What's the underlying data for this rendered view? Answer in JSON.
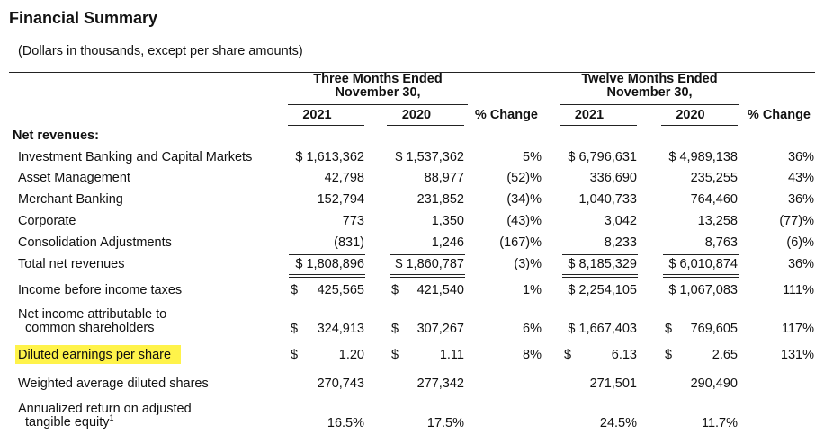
{
  "title": "Financial Summary",
  "subtitle": "(Dollars in thousands, except per share amounts)",
  "column_groups": [
    [
      "Three Months Ended",
      "November 30,"
    ],
    [
      "Twelve Months Ended",
      "November 30,"
    ]
  ],
  "columns": [
    "2021",
    "2020",
    "% Change",
    "2021",
    "2020",
    "% Change"
  ],
  "section": "Net revenues:",
  "rows": [
    {
      "label": [
        "Investment Banking and Capital Markets"
      ],
      "cells": [
        "$ 1,613,362",
        "$ 1,537,362",
        "5%",
        "$ 6,796,631",
        "$ 4,989,138",
        "36%"
      ]
    },
    {
      "label": [
        "Asset Management"
      ],
      "cells": [
        "42,798",
        "88,977",
        "(52)%",
        "336,690",
        "235,255",
        "43%"
      ]
    },
    {
      "label": [
        "Merchant Banking"
      ],
      "cells": [
        "152,794",
        "231,852",
        "(34)%",
        "1,040,733",
        "764,460",
        "36%"
      ]
    },
    {
      "label": [
        "Corporate"
      ],
      "cells": [
        "773",
        "1,350",
        "(43)%",
        "3,042",
        "13,258",
        "(77)%"
      ]
    },
    {
      "label": [
        "Consolidation Adjustments"
      ],
      "cells": [
        "(831)",
        "1,246",
        "(167)%",
        "8,233",
        "8,763",
        "(6)%"
      ]
    },
    {
      "label": [
        "Total net revenues"
      ],
      "cells": [
        "$ 1,808,896",
        "$ 1,860,787",
        "(3)%",
        "$ 8,185,329",
        "$ 6,010,874",
        "36%"
      ]
    },
    {
      "label": [
        "Income before income taxes"
      ],
      "cells": [
        [
          "$",
          "425,565"
        ],
        [
          "$",
          "421,540"
        ],
        "1%",
        "$ 2,254,105",
        "$ 1,067,083",
        "111%"
      ]
    },
    {
      "label": [
        "Net income attributable to",
        "common shareholders"
      ],
      "cells": [
        [
          "$",
          "324,913"
        ],
        [
          "$",
          "307,267"
        ],
        "6%",
        "$ 1,667,403",
        [
          "$",
          "769,605"
        ],
        "117%"
      ]
    },
    {
      "label": [
        "Diluted earnings per share"
      ],
      "highlight": true,
      "cells": [
        [
          "$",
          "1.20"
        ],
        [
          "$",
          "1.11"
        ],
        "8%",
        [
          "$",
          "6.13"
        ],
        [
          "$",
          "2.65"
        ],
        "131%"
      ]
    },
    {
      "label": [
        "Weighted average diluted shares"
      ],
      "cells": [
        "270,743",
        "277,342",
        "",
        "271,501",
        "290,490",
        ""
      ]
    },
    {
      "label": [
        "Annualized return on adjusted",
        "tangible equity"
      ],
      "note": "1",
      "cells": [
        "16.5%",
        "17.5%",
        "",
        "24.5%",
        "11.7%",
        ""
      ]
    }
  ]
}
